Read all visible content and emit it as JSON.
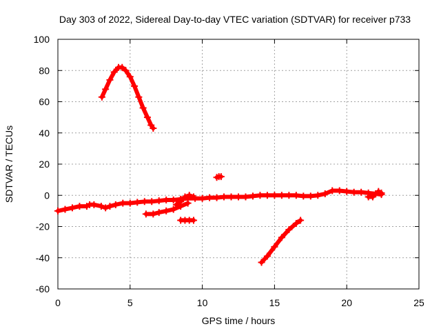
{
  "chart_data": {
    "type": "scatter",
    "title": "Day 303 of 2022, Sidereal Day-to-day VTEC variation (SDTVAR) for receiver p733",
    "xlabel": "GPS time / hours",
    "ylabel": "SDTVAR / TECUs",
    "xlim": [
      0,
      25
    ],
    "ylim": [
      -60,
      100
    ],
    "xticks": [
      0,
      5,
      10,
      15,
      20,
      25
    ],
    "yticks": [
      -60,
      -40,
      -20,
      0,
      20,
      40,
      60,
      80,
      100
    ],
    "grid": true,
    "marker": "plus",
    "series": [
      {
        "name": "arc-peak",
        "color": "#ff0000",
        "x": [
          3.05,
          3.3,
          3.6,
          3.9,
          4.2,
          4.45,
          4.7,
          5.0,
          5.3,
          5.6,
          5.9,
          6.2,
          6.45,
          6.6
        ],
        "y": [
          63,
          68,
          74,
          79,
          82,
          82,
          80,
          76,
          70,
          63,
          56,
          50,
          45,
          43
        ]
      },
      {
        "name": "main-trend",
        "color": "#ff0000",
        "x": [
          0.0,
          0.5,
          1.0,
          1.5,
          2.0,
          2.2,
          2.5,
          3.0,
          3.3,
          3.6,
          4.0,
          4.5,
          5.0,
          5.5,
          6.0,
          6.5,
          7.0,
          7.5,
          8.0,
          8.5,
          9.0,
          9.5,
          10.0,
          10.5,
          11.0,
          11.5,
          12.0,
          12.5,
          13.0,
          13.5,
          14.0,
          14.5,
          15.0,
          15.5,
          16.0,
          16.5,
          17.0,
          17.5,
          18.0,
          18.5,
          19.0,
          19.5,
          20.0,
          20.5,
          21.0,
          21.5,
          22.0,
          22.4
        ],
        "y": [
          -10,
          -9,
          -8,
          -7,
          -7,
          -6,
          -6,
          -7,
          -8,
          -7,
          -6,
          -5,
          -5,
          -4.5,
          -4,
          -4,
          -3.5,
          -3,
          -3,
          -2.5,
          -2,
          -2,
          -2,
          -1.5,
          -1.5,
          -1,
          -1,
          -1,
          -1,
          -0.5,
          0,
          0,
          0,
          0,
          0,
          0,
          -0.5,
          -0.5,
          0,
          1,
          3,
          3,
          2.5,
          2,
          2,
          1.5,
          1,
          0.5
        ]
      },
      {
        "name": "lower-band",
        "color": "#ff0000",
        "x": [
          6.1,
          6.6,
          7.0,
          7.5,
          8.0,
          8.5,
          9.0
        ],
        "y": [
          -12,
          -12,
          -11,
          -10,
          -9,
          -7,
          -5
        ]
      },
      {
        "name": "segment-8-9",
        "color": "#ff0000",
        "x": [
          8.2,
          8.5,
          8.8,
          9.1,
          9.4
        ],
        "y": [
          -6,
          -4,
          -1,
          0,
          -1
        ]
      },
      {
        "name": "segment-9-3",
        "color": "#ff0000",
        "x": [
          8.5,
          8.8,
          9.1,
          9.4
        ],
        "y": [
          -16,
          -16,
          -16,
          -16
        ]
      },
      {
        "name": "spike-11",
        "color": "#ff0000",
        "x": [
          11.0,
          11.15,
          11.3
        ],
        "y": [
          11.5,
          12,
          12
        ]
      },
      {
        "name": "descending-line",
        "color": "#ff0000",
        "x": [
          14.1,
          14.5,
          15.0,
          15.5,
          16.0,
          16.5,
          16.8
        ],
        "y": [
          -43,
          -39,
          -33,
          -27,
          -22,
          -18,
          -16
        ]
      },
      {
        "name": "tail-cluster",
        "color": "#ff0000",
        "x": [
          21.5,
          21.8,
          22.0,
          22.2,
          22.4
        ],
        "y": [
          -1,
          -1,
          1,
          2.5,
          1.5
        ]
      }
    ]
  }
}
